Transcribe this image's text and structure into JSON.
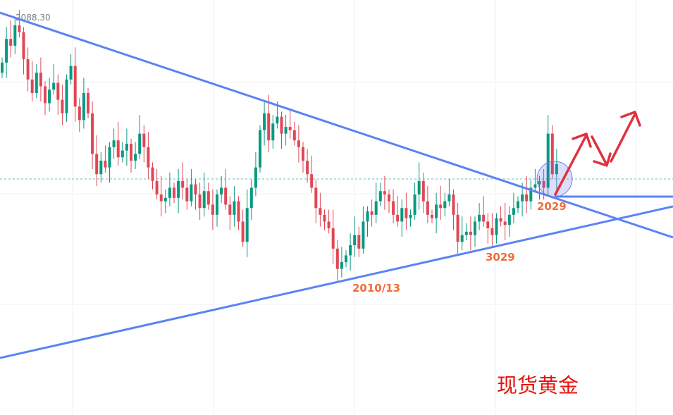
{
  "chart_data": {
    "type": "candlestick",
    "title": "现货黄金",
    "price_label": "2088.30",
    "current_price": 2040.6,
    "up_color": "#089981",
    "down_color": "#e04755",
    "trendline_color": "#5b83f5",
    "arrow_color": "#e0313f",
    "grid": true,
    "close": [
      2075,
      2082,
      2080,
      2086,
      2084,
      2076,
      2070,
      2066,
      2072,
      2068,
      2063,
      2067,
      2069,
      2064,
      2060,
      2070,
      2074,
      2062,
      2058,
      2066,
      2060,
      2048,
      2042,
      2046,
      2044,
      2050,
      2052,
      2047,
      2049,
      2051,
      2046,
      2048,
      2054,
      2050,
      2044,
      2040,
      2036,
      2034,
      2035,
      2038,
      2035,
      2040,
      2038,
      2034,
      2039,
      2036,
      2032,
      2037,
      2033,
      2030,
      2036,
      2038,
      2033,
      2030,
      2034,
      2028,
      2022,
      2032,
      2038,
      2044,
      2055,
      2060,
      2052,
      2057,
      2059,
      2054,
      2056,
      2055,
      2052,
      2050,
      2046,
      2042,
      2038,
      2032,
      2030,
      2028,
      2026,
      2020,
      2014,
      2016,
      2018,
      2021,
      2024,
      2020,
      2028,
      2031,
      2030,
      2034,
      2037,
      2036,
      2034,
      2030,
      2028,
      2032,
      2029,
      2030,
      2036,
      2040,
      2034,
      2030,
      2029,
      2033,
      2032,
      2034,
      2036,
      2030,
      2022,
      2024,
      2025,
      2024,
      2028,
      2030,
      2028,
      2026,
      2024,
      2029,
      2028,
      2027,
      2030,
      2032,
      2034,
      2036,
      2034,
      2038,
      2039,
      2040,
      2038,
      2054,
      2042,
      2045
    ],
    "annotations": {
      "low_label": "2010/13",
      "mid_label": "3029",
      "break_label": "2029"
    }
  }
}
